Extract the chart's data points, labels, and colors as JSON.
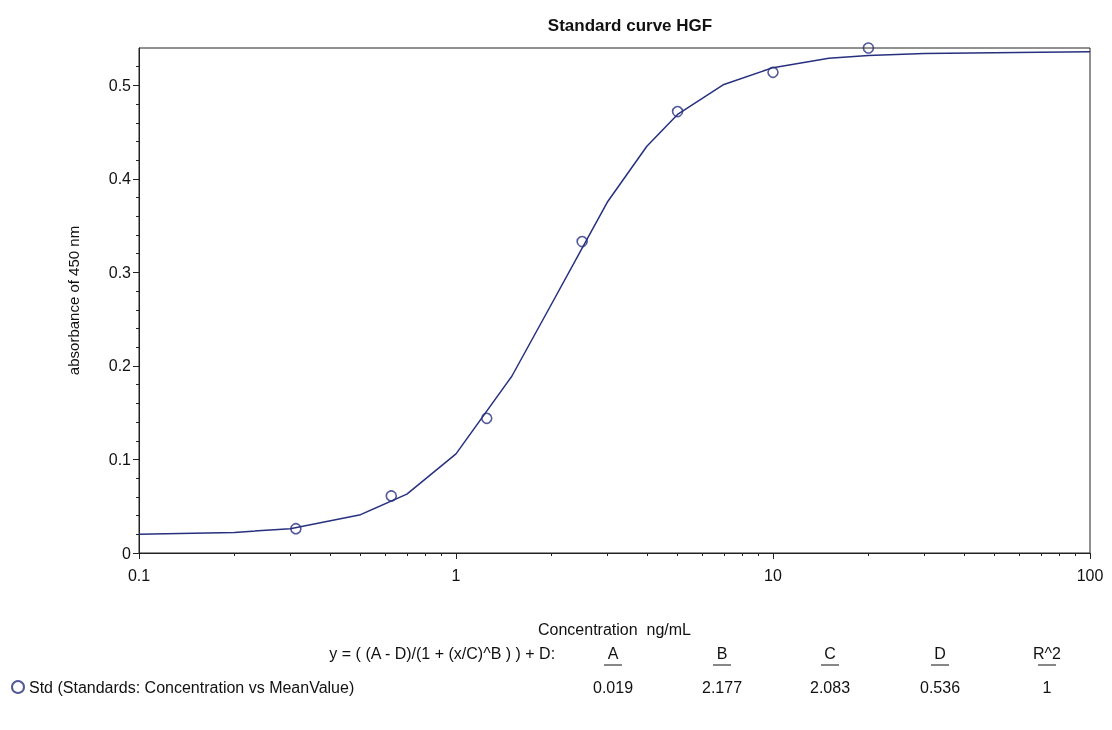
{
  "chart_data": {
    "type": "scatter",
    "title": "Standard curve HGF",
    "xlabel": "Concentration  ng/mL",
    "ylabel": "absorbance of 450 nm",
    "log": "x",
    "xlim": [
      0.1,
      100
    ],
    "xticks": [
      0.1,
      1,
      10,
      100
    ],
    "ylim": [
      0,
      0.54
    ],
    "yticks": [
      0,
      0.1,
      0.2,
      0.3,
      0.4,
      0.5
    ],
    "legend": "bottom left",
    "grid": false,
    "series": [
      {
        "type": "line",
        "marker": "none",
        "color": "#27307f",
        "x": [
          0.1,
          0.2,
          0.3,
          0.5,
          0.7,
          1,
          1.5,
          2,
          3,
          4,
          5,
          7,
          10,
          15,
          20,
          30,
          50,
          100
        ],
        "values": [
          0.02,
          0.022,
          0.026,
          0.041,
          0.063,
          0.106,
          0.189,
          0.266,
          0.375,
          0.435,
          0.469,
          0.501,
          0.519,
          0.529,
          0.532,
          0.534,
          0.535,
          0.536
        ]
      },
      {
        "marker": "circle",
        "name": "Std (Standards: Concentration vs MeanValue)",
        "color": "#27307f",
        "x": [
          0.3125,
          0.625,
          1.25,
          2.5,
          5,
          10,
          20
        ],
        "values": [
          0.026,
          0.061,
          0.144,
          0.333,
          0.472,
          0.514,
          0.54
        ]
      }
    ],
    "annotations": [
      "y = ( (A - D)/(1 + (x/C)^B ) ) + D:",
      "A",
      "B",
      "C",
      "D",
      "R^2",
      "0.019",
      "2.177",
      "2.083",
      "0.536",
      "1"
    ]
  }
}
